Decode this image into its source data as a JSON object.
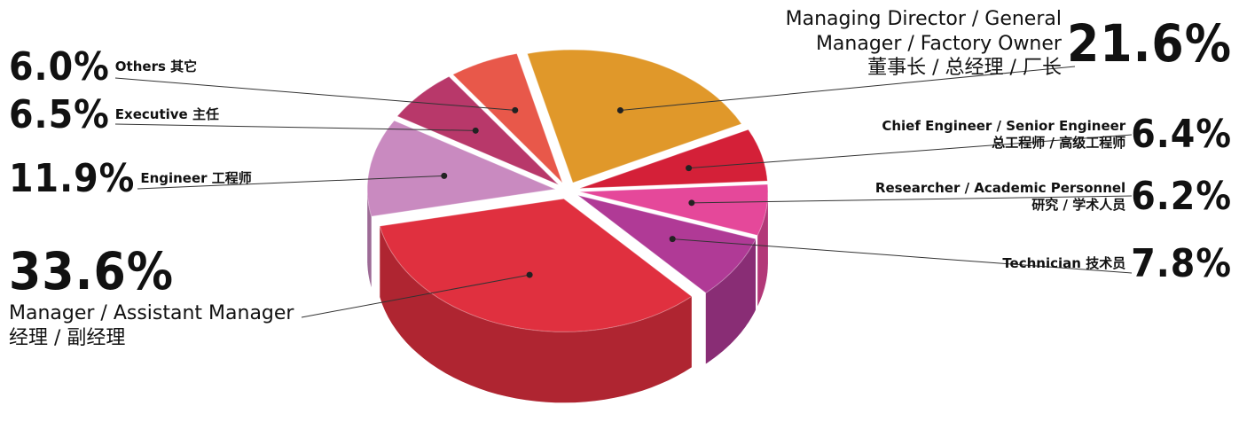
{
  "chart_data": {
    "type": "pie",
    "categories": [
      "Managing Director / General Manager / Factory Owner",
      "Chief Engineer / Senior Engineer",
      "Researcher / Academic Personnel",
      "Technician",
      "Manager / Assistant Manager",
      "Engineer",
      "Executive",
      "Others"
    ],
    "categories_zh": [
      "董事长 / 总经理 / 厂长",
      "总工程师 / 高级工程师",
      "研究 / 学术人员",
      "技术员",
      "经理 / 副经理",
      "工程师",
      "主任",
      "其它"
    ],
    "values": [
      21.6,
      6.4,
      6.2,
      7.8,
      33.6,
      11.9,
      6.5,
      6.0
    ],
    "value_labels": [
      "21.6%",
      "6.4%",
      "6.2%",
      "7.8%",
      "33.6%",
      "11.9%",
      "6.5%",
      "6.0%"
    ],
    "colors": [
      "#e0982a",
      "#d42038",
      "#e5489a",
      "#b03a96",
      "#e0303f",
      "#c98ac0",
      "#b8386a",
      "#e8584a"
    ]
  }
}
